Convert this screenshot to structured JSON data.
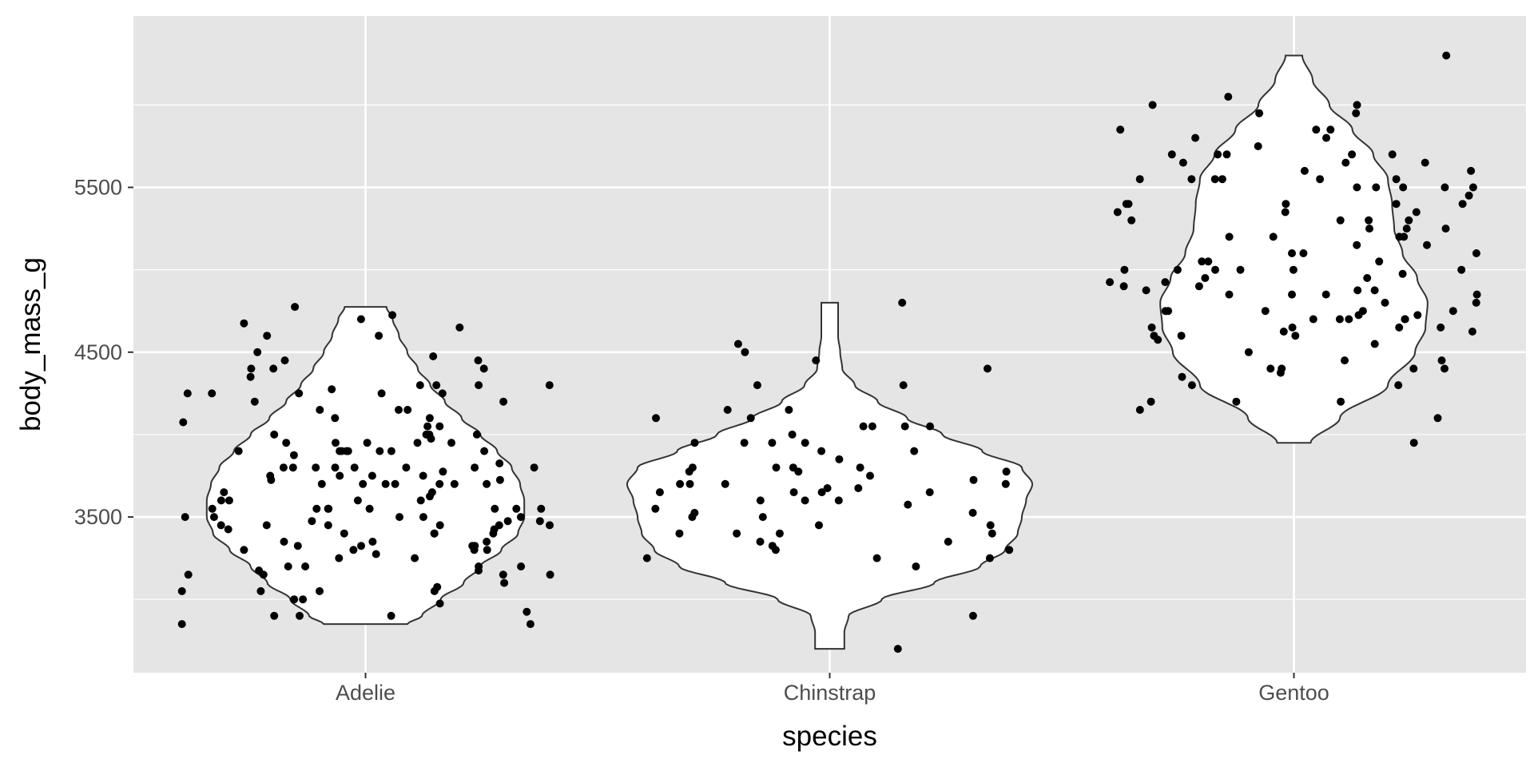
{
  "chart_data": {
    "type": "violin",
    "xlabel": "species",
    "ylabel": "body_mass_g",
    "categories": [
      "Adelie",
      "Chinstrap",
      "Gentoo"
    ],
    "ylim": [
      2555,
      6540
    ],
    "y_ticks": [
      3500,
      4500,
      5500
    ],
    "y_minor_ticks": [
      3000,
      4000,
      5000,
      6000
    ],
    "grid": true,
    "colors": {
      "panel_background": "#e5e5e5",
      "grid": "#ffffff",
      "violin_fill": "#ffffff",
      "violin_outline": "#333333",
      "point": "#000000"
    },
    "violins": [
      {
        "category": "Adelie",
        "min": 2850,
        "max": 4775,
        "profile": [
          [
            2850,
            0.2
          ],
          [
            2900,
            0.27
          ],
          [
            3000,
            0.36
          ],
          [
            3100,
            0.47
          ],
          [
            3200,
            0.55
          ],
          [
            3300,
            0.65
          ],
          [
            3400,
            0.73
          ],
          [
            3500,
            0.76
          ],
          [
            3600,
            0.76
          ],
          [
            3700,
            0.74
          ],
          [
            3800,
            0.7
          ],
          [
            3900,
            0.63
          ],
          [
            4000,
            0.55
          ],
          [
            4100,
            0.46
          ],
          [
            4200,
            0.38
          ],
          [
            4300,
            0.31
          ],
          [
            4400,
            0.25
          ],
          [
            4500,
            0.2
          ],
          [
            4600,
            0.16
          ],
          [
            4700,
            0.13
          ],
          [
            4775,
            0.1
          ]
        ]
      },
      {
        "category": "Chinstrap",
        "min": 2700,
        "max": 4800,
        "profile": [
          [
            2700,
            0.07
          ],
          [
            2800,
            0.07
          ],
          [
            2900,
            0.09
          ],
          [
            3000,
            0.25
          ],
          [
            3100,
            0.5
          ],
          [
            3200,
            0.72
          ],
          [
            3300,
            0.84
          ],
          [
            3400,
            0.9
          ],
          [
            3500,
            0.92
          ],
          [
            3600,
            0.94
          ],
          [
            3700,
            0.97
          ],
          [
            3800,
            0.92
          ],
          [
            3900,
            0.73
          ],
          [
            4000,
            0.54
          ],
          [
            4100,
            0.37
          ],
          [
            4200,
            0.23
          ],
          [
            4300,
            0.12
          ],
          [
            4400,
            0.06
          ],
          [
            4500,
            0.05
          ],
          [
            4600,
            0.04
          ],
          [
            4700,
            0.04
          ],
          [
            4800,
            0.04
          ]
        ]
      },
      {
        "category": "Gentoo",
        "min": 3950,
        "max": 6300,
        "profile": [
          [
            3950,
            0.08
          ],
          [
            4100,
            0.22
          ],
          [
            4300,
            0.45
          ],
          [
            4500,
            0.58
          ],
          [
            4650,
            0.63
          ],
          [
            4800,
            0.64
          ],
          [
            4950,
            0.59
          ],
          [
            5100,
            0.52
          ],
          [
            5250,
            0.48
          ],
          [
            5400,
            0.47
          ],
          [
            5550,
            0.45
          ],
          [
            5700,
            0.38
          ],
          [
            5850,
            0.28
          ],
          [
            6000,
            0.17
          ],
          [
            6150,
            0.09
          ],
          [
            6300,
            0.04
          ]
        ]
      }
    ],
    "points": [
      {
        "category": "Adelie",
        "values": [
          3750,
          3800,
          3250,
          3450,
          3650,
          3625,
          4675,
          3475,
          4250,
          3300,
          3700,
          3200,
          3800,
          4400,
          3700,
          3450,
          4500,
          3325,
          4200,
          3400,
          3600,
          3800,
          3950,
          3800,
          3800,
          3550,
          3200,
          3150,
          3950,
          3250,
          3900,
          3300,
          3900,
          3325,
          4150,
          3950,
          3550,
          3300,
          4650,
          3150,
          3900,
          3100,
          4400,
          3000,
          4600,
          3425,
          2975,
          3450,
          4150,
          3500,
          4300,
          3450,
          4050,
          2900,
          3700,
          3550,
          3800,
          2850,
          3750,
          3150,
          4400,
          3600,
          4050,
          2850,
          3950,
          3350,
          4100,
          3050,
          4450,
          3600,
          3900,
          3550,
          4150,
          3700,
          4250,
          3700,
          3900,
          3550,
          4000,
          3200,
          4700,
          3800,
          4200,
          3350,
          3550,
          3800,
          3500,
          3950,
          3600,
          3550,
          4300,
          3400,
          4450,
          3300,
          4300,
          3700,
          4350,
          2900,
          4100,
          3725,
          4725,
          3075,
          4250,
          2925,
          3550,
          3750,
          3900,
          3175,
          4775,
          3825,
          4600,
          3200,
          4275,
          3900,
          4075,
          2900,
          3775,
          3350,
          3325,
          3150,
          3500,
          3450,
          3875,
          3050,
          4000,
          3275,
          4300,
          3050,
          4000,
          3325,
          3500,
          3500,
          4475,
          3425,
          3900,
          3175,
          3975,
          3400,
          4250,
          3400,
          3475,
          3050,
          3725,
          3000,
          3650,
          4250,
          3475,
          3450,
          3750,
          3700,
          4000
        ]
      },
      {
        "category": "Chinstrap",
        "values": [
          3500,
          3900,
          3650,
          3525,
          3725,
          3950,
          3250,
          3750,
          4150,
          3700,
          3800,
          3775,
          3700,
          4050,
          3575,
          4050,
          3300,
          3700,
          3450,
          4400,
          3600,
          3400,
          2900,
          3800,
          3300,
          4150,
          3400,
          3800,
          3700,
          4550,
          3200,
          4300,
          3350,
          4100,
          3600,
          3900,
          3850,
          4800,
          2700,
          4500,
          3950,
          3650,
          3550,
          3500,
          3675,
          4450,
          3400,
          4300,
          3250,
          3675,
          3325,
          3950,
          3600,
          4050,
          3350,
          3450,
          3250,
          4050,
          3800,
          3525,
          3950,
          3650,
          3650,
          4000,
          3400,
          3775,
          4100,
          3775
        ]
      },
      {
        "category": "Gentoo",
        "values": [
          4500,
          5700,
          4450,
          5700,
          5400,
          4550,
          4800,
          5200,
          4400,
          5150,
          4650,
          5550,
          4650,
          5850,
          4200,
          5850,
          4150,
          6300,
          4800,
          5350,
          5700,
          5000,
          4400,
          5050,
          5000,
          5100,
          4100,
          5650,
          4600,
          5550,
          5250,
          4700,
          5050,
          6050,
          5150,
          5400,
          4950,
          5250,
          4350,
          5350,
          3950,
          5700,
          4300,
          4750,
          5550,
          4900,
          4200,
          5400,
          5100,
          5300,
          4850,
          5300,
          4400,
          5000,
          4900,
          5050,
          4300,
          5000,
          4450,
          5550,
          4200,
          5300,
          4400,
          5650,
          4700,
          5700,
          4650,
          5800,
          4700,
          5550,
          4750,
          5000,
          5100,
          5200,
          4700,
          5800,
          4600,
          6000,
          4750,
          5950,
          4625,
          5450,
          4725,
          5350,
          4750,
          5600,
          4600,
          5300,
          4875,
          5550,
          4950,
          5400,
          4750,
          5650,
          4850,
          5200,
          4925,
          4875,
          4625,
          5250,
          4850,
          5600,
          4975,
          5500,
          4725,
          5500,
          4700,
          5500,
          4575,
          5500,
          5000,
          5950,
          4650,
          5500,
          4375,
          5850,
          4875,
          6000,
          4925,
          4850,
          5750,
          5200,
          5400
        ]
      }
    ]
  }
}
